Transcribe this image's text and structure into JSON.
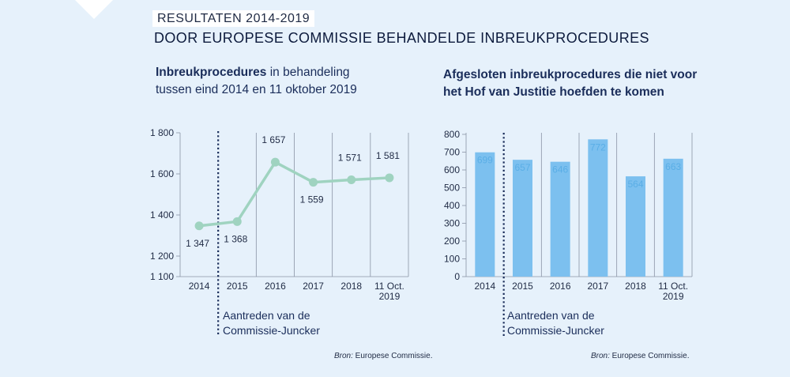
{
  "header": {
    "kicker": "RESULTATEN 2014-2019",
    "title": "DOOR EUROPESE COMMISSIE BEHANDELDE INBREUKPROCEDURES"
  },
  "left_chart": {
    "subtitle_bold": "Inbreukprocedures",
    "subtitle_rest": " in behandeling",
    "subtitle_line2": "tussen eind 2014 en 11 oktober 2019",
    "annotation_line1": "Aantreden van de",
    "annotation_line2": "Commissie-Juncker",
    "source_label": "Bron:",
    "source_text": " Europese Commissie."
  },
  "right_chart": {
    "title_line1": "Afgesloten inbreukprocedures die niet voor",
    "title_line2": "het Hof van Justitie hoefden te komen",
    "annotation_line1": "Aantreden van de",
    "annotation_line2": "Commissie-Juncker",
    "source_label": "Bron:",
    "source_text": " Europese Commissie."
  },
  "colors": {
    "line": "#9fd3c0",
    "bar": "#7cc0ef",
    "bar_label": "#5aaee6",
    "grid": "#8a94a6",
    "axis_text": "#1f2a44",
    "dotted": "#1a2d5a"
  },
  "chart_data": [
    {
      "type": "line",
      "x": [
        "2014",
        "2015",
        "2016",
        "2017",
        "2018",
        "11 Oct. 2019"
      ],
      "x_tick_lines": [
        [
          "2014"
        ],
        [
          "2015"
        ],
        [
          "2016"
        ],
        [
          "2017"
        ],
        [
          "2018"
        ],
        [
          "11 Oct.",
          "2019"
        ]
      ],
      "series": [
        {
          "values": [
            1347,
            1368,
            1657,
            1559,
            1571,
            1581
          ]
        }
      ],
      "data_labels": [
        "1 347",
        "1 368",
        "1 657",
        "1 559",
        "1 571",
        "1 581"
      ],
      "yticks": [
        1100,
        1200,
        1400,
        1600,
        1800
      ],
      "ytick_labels": [
        "1 100",
        "1 200",
        "1 400",
        "1 600",
        "1 800"
      ],
      "ylim": [
        1100,
        1800
      ],
      "grid": "vertical",
      "reference_line_between": [
        "2014",
        "2015"
      ]
    },
    {
      "type": "bar",
      "categories": [
        "2014",
        "2015",
        "2016",
        "2017",
        "2018",
        "11 Oct. 2019"
      ],
      "x_tick_lines": [
        [
          "2014"
        ],
        [
          "2015"
        ],
        [
          "2016"
        ],
        [
          "2017"
        ],
        [
          "2018"
        ],
        [
          "11 Oct.",
          "2019"
        ]
      ],
      "values": [
        699,
        657,
        646,
        772,
        564,
        663
      ],
      "data_labels": [
        "699",
        "657",
        "646",
        "772",
        "564",
        "663"
      ],
      "yticks": [
        0,
        100,
        200,
        300,
        400,
        500,
        600,
        700,
        800
      ],
      "ylim": [
        0,
        800
      ],
      "grid": "vertical",
      "reference_line_between": [
        "2014",
        "2015"
      ]
    }
  ]
}
